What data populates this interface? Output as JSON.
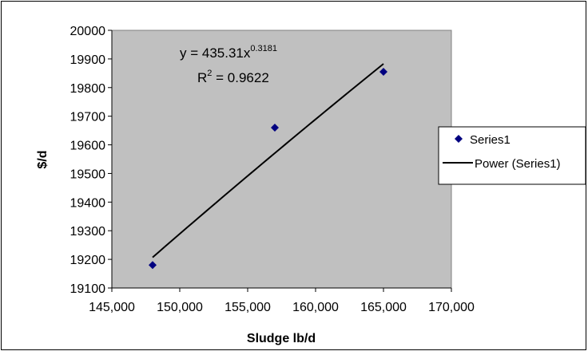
{
  "chart_data": {
    "type": "scatter",
    "xlabel": "Sludge lb/d",
    "ylabel": "$/d",
    "xlim": [
      145000,
      170000
    ],
    "ylim": [
      19100,
      20000
    ],
    "x_ticks": [
      145000,
      150000,
      155000,
      160000,
      165000,
      170000
    ],
    "x_tick_labels": [
      "145,000",
      "150,000",
      "155,000",
      "160,000",
      "165,000",
      "170,000"
    ],
    "y_ticks": [
      19100,
      19200,
      19300,
      19400,
      19500,
      19600,
      19700,
      19800,
      19900,
      20000
    ],
    "y_tick_labels": [
      "19100",
      "19200",
      "19300",
      "19400",
      "19500",
      "19600",
      "19700",
      "19800",
      "19900",
      "20000"
    ],
    "grid": false,
    "plot_background": "#c0c0c0",
    "series": [
      {
        "name": "Series1",
        "marker": "diamond",
        "color": "#000080",
        "x": [
          148000,
          157000,
          165000
        ],
        "y": [
          19180,
          19660,
          19855
        ]
      }
    ],
    "trendline": {
      "name": "Power (Series1)",
      "type": "power",
      "a": 435.31,
      "b": 0.3181,
      "x_range": [
        148000,
        165000
      ],
      "color": "#000000"
    },
    "annotations": {
      "equation_prefix": "y = 435.31x",
      "equation_exponent": "0.3181",
      "r2_prefix": "R",
      "r2_exponent": "2",
      "r2_suffix": " = 0.9622"
    },
    "legend": {
      "position": "right",
      "entries": [
        "Series1",
        "Power (Series1)"
      ]
    }
  }
}
